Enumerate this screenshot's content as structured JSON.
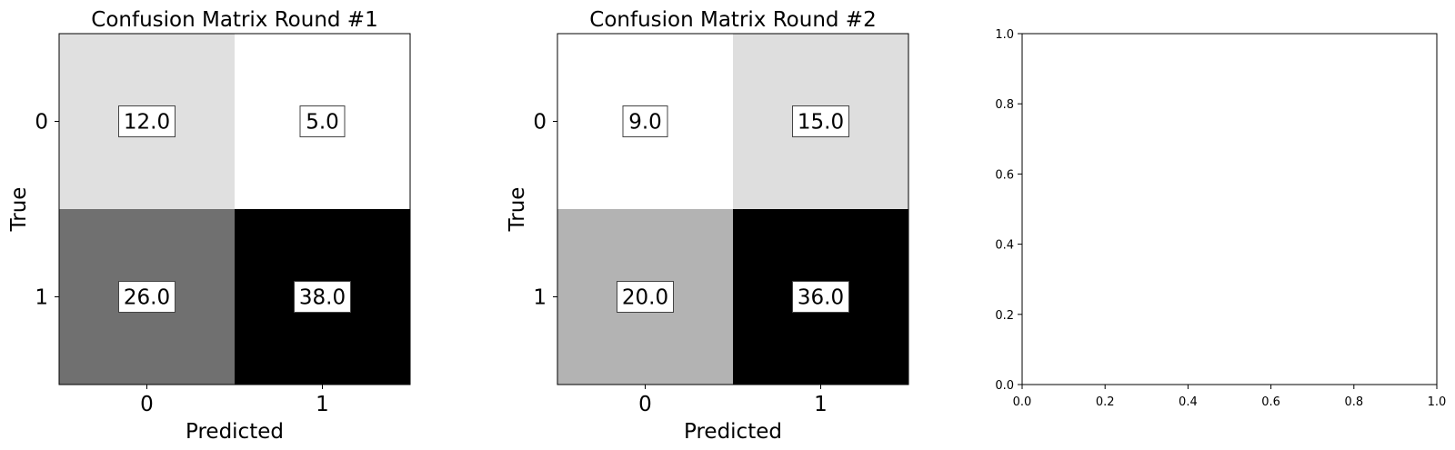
{
  "chart_data": [
    {
      "type": "heatmap",
      "title": "Confusion Matrix Round #1",
      "xlabel": "Predicted",
      "ylabel": "True",
      "x_categories": [
        "0",
        "1"
      ],
      "y_categories": [
        "0",
        "1"
      ],
      "values": [
        [
          12.0,
          5.0
        ],
        [
          26.0,
          38.0
        ]
      ],
      "value_labels": [
        [
          "12.0",
          "5.0"
        ],
        [
          "26.0",
          "38.0"
        ]
      ],
      "colormap": "Greys",
      "color_range": [
        5.0,
        38.0
      ]
    },
    {
      "type": "heatmap",
      "title": "Confusion Matrix Round #2",
      "xlabel": "Predicted",
      "ylabel": "True",
      "x_categories": [
        "0",
        "1"
      ],
      "y_categories": [
        "0",
        "1"
      ],
      "values": [
        [
          9.0,
          15.0
        ],
        [
          20.0,
          36.0
        ]
      ],
      "value_labels": [
        [
          "9.0",
          "15.0"
        ],
        [
          "20.0",
          "36.0"
        ]
      ],
      "colormap": "Greys",
      "color_range": [
        9.0,
        36.0
      ]
    },
    {
      "type": "scatter",
      "title": "",
      "xlabel": "",
      "ylabel": "",
      "xlim": [
        0.0,
        1.0
      ],
      "ylim": [
        0.0,
        1.0
      ],
      "x_ticks": [
        "0.0",
        "0.2",
        "0.4",
        "0.6",
        "0.8",
        "1.0"
      ],
      "y_ticks": [
        "0.0",
        "0.2",
        "0.4",
        "0.6",
        "0.8",
        "1.0"
      ],
      "series": []
    }
  ]
}
